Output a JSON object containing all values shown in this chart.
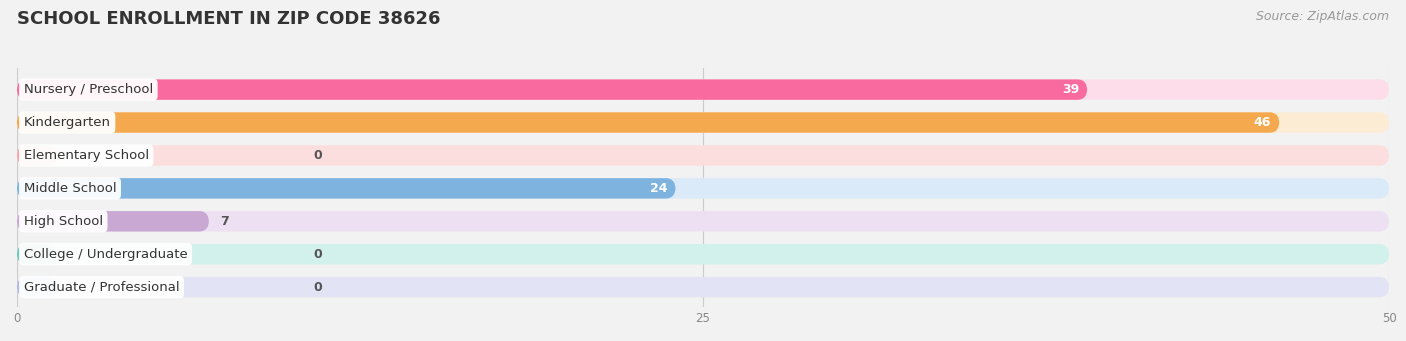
{
  "title": "SCHOOL ENROLLMENT IN ZIP CODE 38626",
  "source": "Source: ZipAtlas.com",
  "categories": [
    "Nursery / Preschool",
    "Kindergarten",
    "Elementary School",
    "Middle School",
    "High School",
    "College / Undergraduate",
    "Graduate / Professional"
  ],
  "values": [
    39,
    46,
    0,
    24,
    7,
    0,
    0
  ],
  "bar_colors": [
    "#F96B9E",
    "#F5A94E",
    "#F4A8A8",
    "#7EB3E0",
    "#C9A8D4",
    "#6EC9BB",
    "#B0B8E8"
  ],
  "bar_bg_colors": [
    "#FCDDE9",
    "#FDECD4",
    "#FDDEDE",
    "#DAEAF8",
    "#EDE0F2",
    "#D2F0EC",
    "#E2E4F6"
  ],
  "xlim_max": 50,
  "xticks": [
    0,
    25,
    50
  ],
  "background_color": "#f2f2f2",
  "chart_bg": "#f2f2f2",
  "bar_height": 0.62,
  "bar_gap": 0.38,
  "title_fontsize": 13,
  "label_fontsize": 9.5,
  "value_fontsize": 9,
  "source_fontsize": 9
}
